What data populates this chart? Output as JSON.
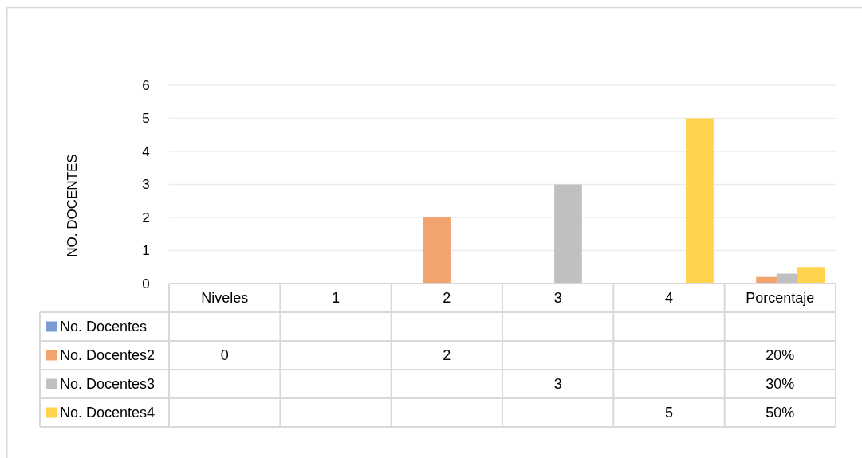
{
  "chart_data": {
    "type": "bar",
    "ylabel": "NO. DOCENTES",
    "categories": [
      "Niveles",
      "1",
      "2",
      "3",
      "4",
      "Porcentaje"
    ],
    "series": [
      {
        "name": "No. Docentes",
        "color": "#7c9cd6",
        "values": [
          null,
          null,
          null,
          null,
          null,
          null
        ],
        "value_labels": [
          null,
          null,
          null,
          null,
          null,
          null
        ]
      },
      {
        "name": "No. Docentes2",
        "color": "#f2a46f",
        "values": [
          0,
          null,
          2,
          null,
          null,
          0.2
        ],
        "value_labels": [
          "0",
          null,
          "2",
          null,
          null,
          "20%"
        ]
      },
      {
        "name": "No. Docentes3",
        "color": "#c0c0c0",
        "values": [
          null,
          null,
          null,
          3,
          null,
          0.3
        ],
        "value_labels": [
          null,
          null,
          null,
          "3",
          null,
          "30%"
        ]
      },
      {
        "name": "No. Docentes4",
        "color": "#ffd34c",
        "values": [
          null,
          null,
          null,
          null,
          5,
          0.5
        ],
        "value_labels": [
          null,
          null,
          null,
          null,
          "5",
          "50%"
        ]
      }
    ],
    "ylim": [
      0,
      6
    ],
    "yticks": [
      0,
      1,
      2,
      3,
      4,
      5,
      6
    ],
    "grid": "y",
    "legend": "bottom"
  }
}
